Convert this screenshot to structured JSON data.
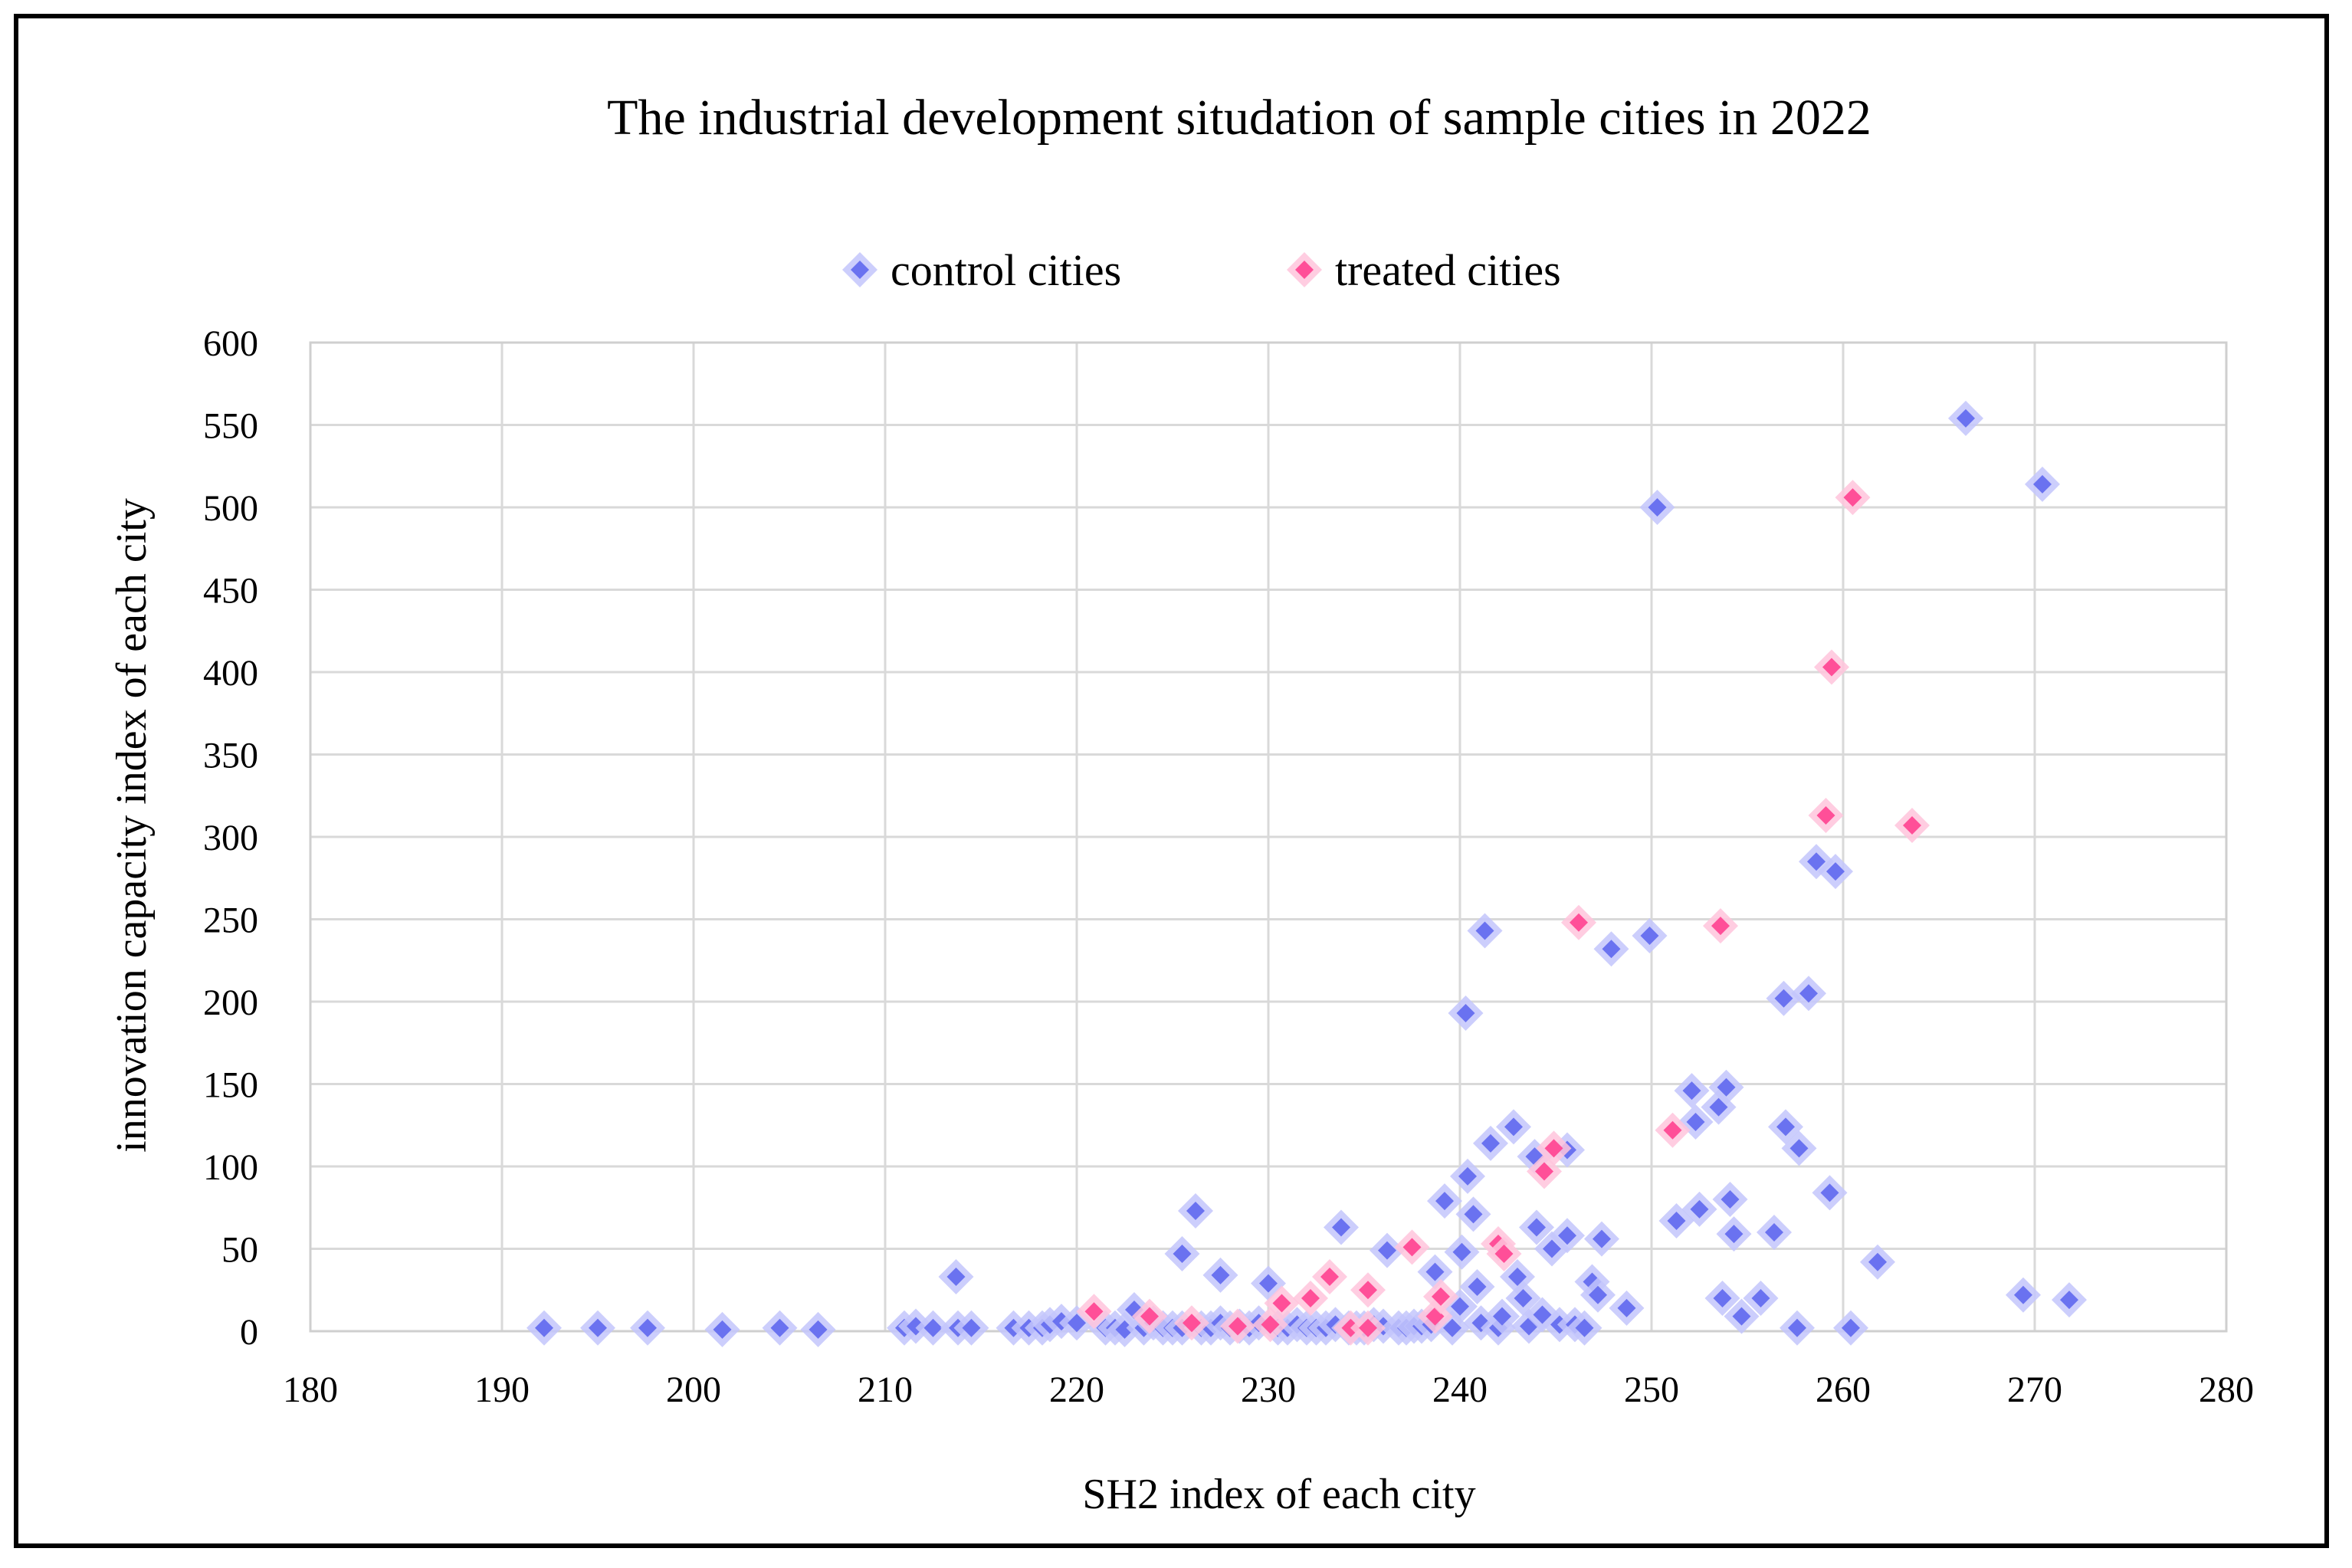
{
  "chart_data": {
    "type": "scatter",
    "title": "The industrial development situdation of sample cities in 2022",
    "xlabel": "SH2  index of each city",
    "ylabel": "innovation capacity index of each city",
    "xlim": [
      180,
      280
    ],
    "ylim": [
      0,
      600
    ],
    "xticks": [
      "180",
      "190",
      "200",
      "210",
      "220",
      "230",
      "240",
      "250",
      "260",
      "270",
      "280"
    ],
    "yticks": [
      "0",
      "50",
      "100",
      "150",
      "200",
      "250",
      "300",
      "350",
      "400",
      "450",
      "500",
      "550",
      "600"
    ],
    "grid": true,
    "legend_position": "top-center",
    "series": [
      {
        "name": "control cities",
        "color": "#6a72f0",
        "halo": "#c3c6fb",
        "points": [
          [
            192.2,
            2
          ],
          [
            195,
            2
          ],
          [
            197.6,
            2
          ],
          [
            201.5,
            1
          ],
          [
            204.5,
            2
          ],
          [
            206.5,
            1
          ],
          [
            211,
            2
          ],
          [
            211.6,
            3
          ],
          [
            212.5,
            2
          ],
          [
            213.8,
            2
          ],
          [
            214.5,
            2
          ],
          [
            213.7,
            33
          ],
          [
            216.7,
            2
          ],
          [
            217.5,
            2
          ],
          [
            218.2,
            2
          ],
          [
            218.6,
            4
          ],
          [
            219.2,
            6
          ],
          [
            220,
            5
          ],
          [
            221.5,
            2
          ],
          [
            222,
            2
          ],
          [
            222.5,
            1
          ],
          [
            223,
            13
          ],
          [
            223.5,
            2
          ],
          [
            224,
            5
          ],
          [
            224.5,
            2
          ],
          [
            225,
            2
          ],
          [
            225.5,
            2
          ],
          [
            225.5,
            47
          ],
          [
            226.2,
            73
          ],
          [
            226.5,
            2
          ],
          [
            227,
            2
          ],
          [
            227.5,
            5
          ],
          [
            227.5,
            34
          ],
          [
            228,
            2
          ],
          [
            228.5,
            3
          ],
          [
            229,
            2
          ],
          [
            229.5,
            5
          ],
          [
            230,
            29
          ],
          [
            230.5,
            2
          ],
          [
            231,
            2
          ],
          [
            231.5,
            4
          ],
          [
            232,
            2
          ],
          [
            232.5,
            2
          ],
          [
            233,
            2
          ],
          [
            233.5,
            4
          ],
          [
            233.8,
            63
          ],
          [
            234.2,
            2
          ],
          [
            234.6,
            2
          ],
          [
            235,
            2
          ],
          [
            235.5,
            4
          ],
          [
            236,
            3
          ],
          [
            236.2,
            49
          ],
          [
            236.8,
            2
          ],
          [
            237.2,
            2
          ],
          [
            237.6,
            3
          ],
          [
            238,
            3
          ],
          [
            238.5,
            4
          ],
          [
            238.7,
            36
          ],
          [
            239.2,
            79
          ],
          [
            239.6,
            2
          ],
          [
            240,
            15
          ],
          [
            240.1,
            48
          ],
          [
            240.3,
            193
          ],
          [
            240.4,
            94
          ],
          [
            240.7,
            71
          ],
          [
            240.9,
            27
          ],
          [
            241.1,
            5
          ],
          [
            241.3,
            243
          ],
          [
            241.6,
            114
          ],
          [
            242,
            2
          ],
          [
            242.2,
            9
          ],
          [
            242.8,
            124
          ],
          [
            243,
            33
          ],
          [
            243.3,
            20
          ],
          [
            243.6,
            3
          ],
          [
            243.9,
            106
          ],
          [
            244,
            63
          ],
          [
            244.3,
            10
          ],
          [
            244.8,
            50
          ],
          [
            245.2,
            4
          ],
          [
            245.6,
            110
          ],
          [
            245.6,
            58
          ],
          [
            246,
            4
          ],
          [
            246.5,
            2
          ],
          [
            246.9,
            30
          ],
          [
            247.2,
            22
          ],
          [
            247.4,
            56
          ],
          [
            247.9,
            232
          ],
          [
            248.7,
            14
          ],
          [
            249.9,
            240
          ],
          [
            250.3,
            500
          ],
          [
            251.3,
            67
          ],
          [
            252.1,
            146
          ],
          [
            252.3,
            127
          ],
          [
            252.5,
            74
          ],
          [
            253.5,
            136
          ],
          [
            253.7,
            20
          ],
          [
            253.9,
            148
          ],
          [
            254.1,
            80
          ],
          [
            254.3,
            59
          ],
          [
            254.7,
            9
          ],
          [
            255.7,
            20
          ],
          [
            256.4,
            60
          ],
          [
            256.9,
            202
          ],
          [
            257,
            124
          ],
          [
            257.7,
            111
          ],
          [
            257.6,
            2
          ],
          [
            258.2,
            205
          ],
          [
            258.6,
            285
          ],
          [
            259.3,
            84
          ],
          [
            259.6,
            279
          ],
          [
            260.4,
            2
          ],
          [
            261.8,
            42
          ],
          [
            266.4,
            554
          ],
          [
            269.4,
            22
          ],
          [
            270.4,
            514
          ],
          [
            271.8,
            19
          ]
        ]
      },
      {
        "name": "treated cities",
        "color": "#ff4f98",
        "halo": "#ffc4dc",
        "points": [
          [
            220.9,
            12
          ],
          [
            223.8,
            9
          ],
          [
            226,
            5
          ],
          [
            228.4,
            3
          ],
          [
            230.1,
            4
          ],
          [
            230.7,
            17
          ],
          [
            232.2,
            20
          ],
          [
            233.2,
            33
          ],
          [
            234.3,
            2
          ],
          [
            235.2,
            2
          ],
          [
            235.2,
            25
          ],
          [
            237.5,
            51
          ],
          [
            238.7,
            9
          ],
          [
            239,
            21
          ],
          [
            242,
            53
          ],
          [
            242.3,
            47
          ],
          [
            244.4,
            97
          ],
          [
            244.9,
            111
          ],
          [
            246.2,
            248
          ],
          [
            251.1,
            122
          ],
          [
            253.6,
            246
          ],
          [
            259.1,
            313
          ],
          [
            259.4,
            403
          ],
          [
            260.5,
            506
          ],
          [
            263.6,
            307
          ]
        ]
      }
    ]
  }
}
